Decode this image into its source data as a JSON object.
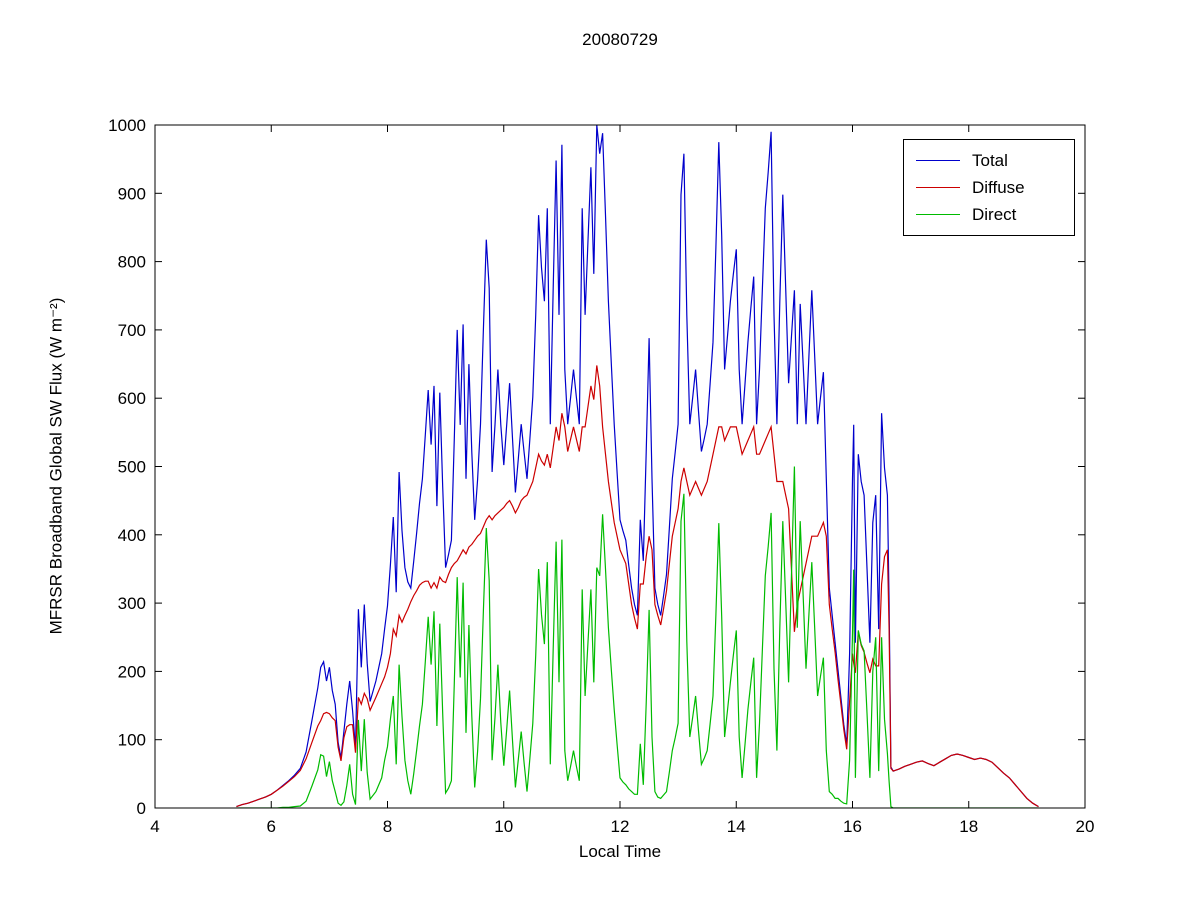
{
  "chart_data": {
    "type": "line",
    "title": "20080729",
    "xlabel": "Local Time",
    "ylabel": "MFRSR Broadband Global SW Flux (W m⁻²)",
    "xlim": [
      4,
      20
    ],
    "ylim": [
      0,
      1000
    ],
    "x_ticks": [
      4,
      6,
      8,
      10,
      12,
      14,
      16,
      18,
      20
    ],
    "y_ticks": [
      0,
      100,
      200,
      300,
      400,
      500,
      600,
      700,
      800,
      900,
      1000
    ],
    "grid": false,
    "legend_position": "top-right",
    "series": [
      {
        "name": "Total",
        "color": "#0000cc"
      },
      {
        "name": "Diffuse",
        "color": "#cc0000"
      },
      {
        "name": "Direct",
        "color": "#00bb00"
      }
    ],
    "points_format": [
      "local_time_hours",
      "total",
      "diffuse",
      "direct"
    ],
    "points": [
      [
        5.4,
        2,
        2,
        0
      ],
      [
        5.5,
        5,
        5,
        0
      ],
      [
        5.6,
        7,
        7,
        0
      ],
      [
        5.7,
        10,
        10,
        0
      ],
      [
        5.8,
        13,
        13,
        0
      ],
      [
        5.9,
        16,
        16,
        0
      ],
      [
        6.0,
        20,
        20,
        0
      ],
      [
        6.1,
        26,
        26,
        0
      ],
      [
        6.2,
        33,
        32,
        1
      ],
      [
        6.3,
        40,
        39,
        1
      ],
      [
        6.4,
        48,
        46,
        2
      ],
      [
        6.5,
        58,
        55,
        3
      ],
      [
        6.6,
        82,
        72,
        10
      ],
      [
        6.7,
        128,
        96,
        32
      ],
      [
        6.8,
        176,
        120,
        56
      ],
      [
        6.85,
        206,
        128,
        78
      ],
      [
        6.9,
        214,
        138,
        76
      ],
      [
        6.95,
        186,
        140,
        46
      ],
      [
        7.0,
        206,
        138,
        68
      ],
      [
        7.05,
        172,
        132,
        40
      ],
      [
        7.1,
        152,
        128,
        24
      ],
      [
        7.15,
        96,
        89,
        7
      ],
      [
        7.2,
        73,
        69,
        4
      ],
      [
        7.25,
        112,
        103,
        9
      ],
      [
        7.3,
        152,
        119,
        33
      ],
      [
        7.35,
        186,
        122,
        64
      ],
      [
        7.4,
        142,
        122,
        20
      ],
      [
        7.45,
        86,
        81,
        5
      ],
      [
        7.5,
        291,
        162,
        129
      ],
      [
        7.55,
        206,
        152,
        54
      ],
      [
        7.6,
        298,
        168,
        130
      ],
      [
        7.65,
        212,
        160,
        52
      ],
      [
        7.7,
        156,
        143,
        13
      ],
      [
        7.8,
        186,
        162,
        24
      ],
      [
        7.9,
        226,
        182,
        44
      ],
      [
        7.95,
        262,
        192,
        70
      ],
      [
        8.0,
        296,
        206,
        90
      ],
      [
        8.05,
        356,
        226,
        130
      ],
      [
        8.1,
        426,
        262,
        164
      ],
      [
        8.15,
        316,
        252,
        64
      ],
      [
        8.2,
        492,
        282,
        210
      ],
      [
        8.25,
        406,
        272,
        134
      ],
      [
        8.3,
        352,
        282,
        70
      ],
      [
        8.35,
        331,
        291,
        40
      ],
      [
        8.4,
        322,
        302,
        20
      ],
      [
        8.45,
        361,
        311,
        50
      ],
      [
        8.5,
        402,
        318,
        84
      ],
      [
        8.55,
        446,
        326,
        120
      ],
      [
        8.6,
        482,
        330,
        152
      ],
      [
        8.65,
        546,
        332,
        214
      ],
      [
        8.7,
        612,
        332,
        280
      ],
      [
        8.75,
        532,
        322,
        210
      ],
      [
        8.8,
        618,
        330,
        288
      ],
      [
        8.85,
        442,
        322,
        120
      ],
      [
        8.9,
        608,
        338,
        270
      ],
      [
        8.95,
        470,
        332,
        138
      ],
      [
        9.0,
        352,
        330,
        22
      ],
      [
        9.05,
        371,
        342,
        29
      ],
      [
        9.1,
        392,
        352,
        40
      ],
      [
        9.15,
        541,
        358,
        183
      ],
      [
        9.2,
        700,
        362,
        338
      ],
      [
        9.25,
        561,
        370,
        191
      ],
      [
        9.3,
        708,
        378,
        330
      ],
      [
        9.35,
        482,
        372,
        110
      ],
      [
        9.4,
        650,
        382,
        268
      ],
      [
        9.45,
        521,
        386,
        135
      ],
      [
        9.5,
        422,
        392,
        30
      ],
      [
        9.55,
        481,
        398,
        83
      ],
      [
        9.6,
        562,
        402,
        160
      ],
      [
        9.65,
        701,
        412,
        289
      ],
      [
        9.7,
        832,
        422,
        410
      ],
      [
        9.75,
        761,
        428,
        333
      ],
      [
        9.8,
        492,
        422,
        70
      ],
      [
        9.85,
        561,
        428,
        133
      ],
      [
        9.9,
        642,
        432,
        210
      ],
      [
        9.95,
        561,
        436,
        125
      ],
      [
        10.0,
        502,
        440,
        62
      ],
      [
        10.05,
        561,
        446,
        115
      ],
      [
        10.1,
        622,
        450,
        172
      ],
      [
        10.15,
        541,
        442,
        99
      ],
      [
        10.2,
        462,
        432,
        30
      ],
      [
        10.25,
        511,
        440,
        71
      ],
      [
        10.3,
        562,
        450,
        112
      ],
      [
        10.35,
        521,
        455,
        66
      ],
      [
        10.4,
        482,
        458,
        24
      ],
      [
        10.45,
        541,
        468,
        73
      ],
      [
        10.5,
        602,
        478,
        124
      ],
      [
        10.55,
        721,
        498,
        223
      ],
      [
        10.6,
        868,
        518,
        350
      ],
      [
        10.65,
        791,
        508,
        283
      ],
      [
        10.7,
        742,
        502,
        240
      ],
      [
        10.75,
        878,
        518,
        360
      ],
      [
        10.8,
        562,
        498,
        64
      ],
      [
        10.85,
        761,
        528,
        233
      ],
      [
        10.9,
        948,
        558,
        390
      ],
      [
        10.95,
        722,
        538,
        184
      ],
      [
        11.0,
        971,
        578,
        393
      ],
      [
        11.05,
        642,
        558,
        84
      ],
      [
        11.1,
        562,
        522,
        40
      ],
      [
        11.15,
        601,
        540,
        61
      ],
      [
        11.2,
        642,
        558,
        84
      ],
      [
        11.25,
        601,
        540,
        61
      ],
      [
        11.3,
        562,
        522,
        40
      ],
      [
        11.35,
        878,
        558,
        320
      ],
      [
        11.4,
        722,
        558,
        164
      ],
      [
        11.45,
        831,
        588,
        243
      ],
      [
        11.5,
        938,
        618,
        320
      ],
      [
        11.55,
        782,
        598,
        184
      ],
      [
        11.6,
        1000,
        648,
        352
      ],
      [
        11.65,
        958,
        618,
        340
      ],
      [
        11.7,
        988,
        558,
        430
      ],
      [
        11.75,
        868,
        518,
        350
      ],
      [
        11.8,
        742,
        478,
        264
      ],
      [
        11.85,
        651,
        448,
        203
      ],
      [
        11.9,
        562,
        418,
        144
      ],
      [
        11.95,
        491,
        398,
        93
      ],
      [
        12.0,
        422,
        378,
        44
      ],
      [
        12.05,
        406,
        368,
        38
      ],
      [
        12.1,
        392,
        358,
        34
      ],
      [
        12.15,
        356,
        328,
        28
      ],
      [
        12.2,
        322,
        298,
        24
      ],
      [
        12.25,
        298,
        278,
        20
      ],
      [
        12.3,
        282,
        262,
        20
      ],
      [
        12.35,
        422,
        328,
        94
      ],
      [
        12.4,
        362,
        328,
        34
      ],
      [
        12.45,
        521,
        368,
        153
      ],
      [
        12.5,
        688,
        398,
        290
      ],
      [
        12.55,
        482,
        378,
        104
      ],
      [
        12.6,
        322,
        298,
        24
      ],
      [
        12.65,
        298,
        282,
        16
      ],
      [
        12.7,
        282,
        268,
        14
      ],
      [
        12.75,
        311,
        292,
        19
      ],
      [
        12.8,
        342,
        318,
        24
      ],
      [
        12.85,
        411,
        358,
        53
      ],
      [
        12.9,
        482,
        398,
        84
      ],
      [
        12.95,
        521,
        418,
        103
      ],
      [
        13.0,
        562,
        438,
        124
      ],
      [
        13.05,
        898,
        478,
        420
      ],
      [
        13.1,
        958,
        498,
        460
      ],
      [
        13.15,
        722,
        478,
        244
      ],
      [
        13.2,
        562,
        458,
        104
      ],
      [
        13.25,
        601,
        468,
        133
      ],
      [
        13.3,
        642,
        478,
        164
      ],
      [
        13.35,
        581,
        468,
        113
      ],
      [
        13.4,
        522,
        458,
        64
      ],
      [
        13.45,
        541,
        468,
        73
      ],
      [
        13.5,
        562,
        478,
        84
      ],
      [
        13.55,
        621,
        498,
        123
      ],
      [
        13.6,
        682,
        518,
        164
      ],
      [
        13.65,
        821,
        538,
        283
      ],
      [
        13.7,
        975,
        558,
        417
      ],
      [
        13.75,
        838,
        558,
        280
      ],
      [
        13.8,
        642,
        538,
        104
      ],
      [
        13.85,
        691,
        548,
        143
      ],
      [
        13.9,
        742,
        558,
        184
      ],
      [
        13.95,
        781,
        558,
        223
      ],
      [
        14.0,
        818,
        558,
        260
      ],
      [
        14.05,
        642,
        538,
        104
      ],
      [
        14.1,
        562,
        518,
        44
      ],
      [
        14.15,
        621,
        528,
        93
      ],
      [
        14.2,
        682,
        538,
        144
      ],
      [
        14.25,
        731,
        548,
        183
      ],
      [
        14.3,
        778,
        558,
        220
      ],
      [
        14.35,
        562,
        518,
        44
      ],
      [
        14.4,
        642,
        518,
        124
      ],
      [
        14.45,
        761,
        528,
        233
      ],
      [
        14.5,
        878,
        538,
        340
      ],
      [
        14.55,
        931,
        548,
        383
      ],
      [
        14.6,
        990,
        558,
        432
      ],
      [
        14.65,
        722,
        518,
        204
      ],
      [
        14.7,
        562,
        478,
        84
      ],
      [
        14.75,
        741,
        478,
        263
      ],
      [
        14.8,
        898,
        478,
        420
      ],
      [
        14.85,
        761,
        458,
        303
      ],
      [
        14.9,
        622,
        438,
        184
      ],
      [
        14.95,
        691,
        348,
        343
      ],
      [
        15.0,
        758,
        258,
        500
      ],
      [
        15.05,
        562,
        298,
        264
      ],
      [
        15.1,
        738,
        318,
        420
      ],
      [
        15.15,
        651,
        338,
        313
      ],
      [
        15.2,
        562,
        358,
        204
      ],
      [
        15.25,
        661,
        378,
        283
      ],
      [
        15.3,
        758,
        398,
        360
      ],
      [
        15.35,
        661,
        398,
        263
      ],
      [
        15.4,
        562,
        398,
        164
      ],
      [
        15.45,
        601,
        408,
        193
      ],
      [
        15.5,
        638,
        418,
        220
      ],
      [
        15.55,
        482,
        398,
        84
      ],
      [
        15.6,
        322,
        298,
        24
      ],
      [
        15.65,
        282,
        262,
        20
      ],
      [
        15.7,
        242,
        228,
        14
      ],
      [
        15.75,
        202,
        188,
        14
      ],
      [
        15.8,
        162,
        152,
        10
      ],
      [
        15.85,
        122,
        115,
        7
      ],
      [
        15.9,
        92,
        86,
        6
      ],
      [
        15.95,
        226,
        156,
        70
      ],
      [
        16.0,
        482,
        226,
        256
      ],
      [
        16.02,
        561,
        212,
        349
      ],
      [
        16.05,
        242,
        198,
        44
      ],
      [
        16.1,
        518,
        258,
        260
      ],
      [
        16.15,
        478,
        238,
        240
      ],
      [
        16.2,
        458,
        228,
        230
      ],
      [
        16.25,
        351,
        212,
        139
      ],
      [
        16.3,
        242,
        198,
        44
      ],
      [
        16.35,
        418,
        218,
        200
      ],
      [
        16.4,
        458,
        208,
        250
      ],
      [
        16.45,
        262,
        208,
        54
      ],
      [
        16.5,
        578,
        328,
        250
      ],
      [
        16.55,
        498,
        368,
        130
      ],
      [
        16.6,
        458,
        378,
        80
      ],
      [
        16.63,
        301,
        262,
        39
      ],
      [
        16.66,
        60,
        58,
        2
      ],
      [
        16.7,
        54,
        54,
        0
      ],
      [
        16.8,
        57,
        57,
        0
      ],
      [
        16.9,
        61,
        61,
        0
      ],
      [
        17.0,
        64,
        64,
        0
      ],
      [
        17.1,
        67,
        67,
        0
      ],
      [
        17.2,
        69,
        69,
        0
      ],
      [
        17.3,
        65,
        65,
        0
      ],
      [
        17.4,
        62,
        62,
        0
      ],
      [
        17.5,
        67,
        67,
        0
      ],
      [
        17.6,
        72,
        72,
        0
      ],
      [
        17.7,
        77,
        77,
        0
      ],
      [
        17.8,
        79,
        79,
        0
      ],
      [
        17.9,
        77,
        77,
        0
      ],
      [
        18.0,
        74,
        74,
        0
      ],
      [
        18.1,
        71,
        71,
        0
      ],
      [
        18.2,
        73,
        73,
        0
      ],
      [
        18.3,
        71,
        71,
        0
      ],
      [
        18.4,
        67,
        67,
        0
      ],
      [
        18.5,
        59,
        59,
        0
      ],
      [
        18.6,
        51,
        51,
        0
      ],
      [
        18.7,
        44,
        44,
        0
      ],
      [
        18.8,
        34,
        34,
        0
      ],
      [
        18.9,
        24,
        24,
        0
      ],
      [
        19.0,
        14,
        14,
        0
      ],
      [
        19.1,
        7,
        7,
        0
      ],
      [
        19.2,
        2,
        2,
        0
      ]
    ]
  }
}
